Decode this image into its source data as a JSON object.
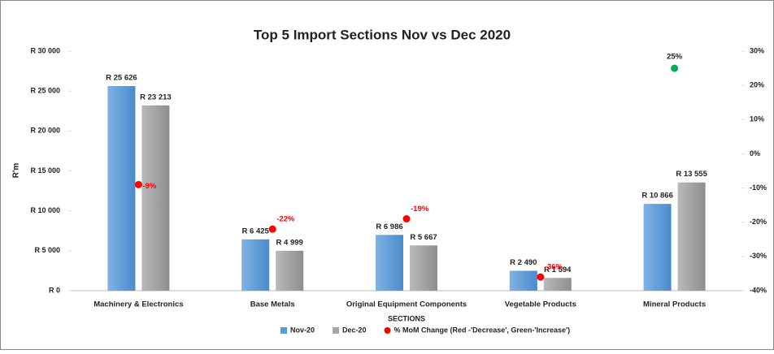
{
  "chart_data": {
    "type": "bar",
    "title": "Top 5 Import Sections Nov vs Dec 2020",
    "x_label": "SECTIONS",
    "y_label": "R'm",
    "categories": [
      "Machinery & Electronics",
      "Base Metals",
      "Original Equipment Components",
      "Vegetable Products",
      "Mineral Products"
    ],
    "series": [
      {
        "name": "Nov-20",
        "color": "#5b9bd5",
        "values": [
          25626,
          6425,
          6986,
          2490,
          10866
        ],
        "value_labels": [
          "R 25 626",
          "R 6 425",
          "R 6 986",
          "R 2 490",
          "R 10 866"
        ]
      },
      {
        "name": "Dec-20",
        "color": "#a5a5a5",
        "values": [
          23213,
          4999,
          5667,
          1594,
          13555
        ],
        "value_labels": [
          "R 23 213",
          "R 4 999",
          "R 5 667",
          "R 1 594",
          "R 13 555"
        ]
      },
      {
        "name": "% MoM Change (Red -'Decrease', Green-'Increase')",
        "color": "#ff0000",
        "axis": "y2",
        "colors": [
          "#ff0000",
          "#ff0000",
          "#ff0000",
          "#ff0000",
          "#00b050"
        ],
        "values": [
          -9,
          -22,
          -19,
          -36,
          25
        ],
        "value_labels": [
          "-9%",
          "-22%",
          "-19%",
          "-36%",
          "25%"
        ]
      }
    ],
    "ylim": [
      0,
      30000
    ],
    "yticks": [
      {
        "value": 0,
        "label": "R 0"
      },
      {
        "value": 5000,
        "label": "R 5 000"
      },
      {
        "value": 10000,
        "label": "R 10 000"
      },
      {
        "value": 15000,
        "label": "R 15 000"
      },
      {
        "value": 20000,
        "label": "R 20 000"
      },
      {
        "value": 25000,
        "label": "R 25 000"
      },
      {
        "value": 30000,
        "label": "R 30 000"
      }
    ],
    "y2lim": [
      -40,
      30
    ],
    "y2ticks": [
      {
        "value": -40,
        "label": "-40%"
      },
      {
        "value": -30,
        "label": "-30%"
      },
      {
        "value": -20,
        "label": "-20%"
      },
      {
        "value": -10,
        "label": "-10%"
      },
      {
        "value": 0,
        "label": "0%"
      },
      {
        "value": 10,
        "label": "10%"
      },
      {
        "value": 20,
        "label": "20%"
      },
      {
        "value": 30,
        "label": "30%"
      }
    ],
    "grid": false,
    "legend": "bottom"
  }
}
